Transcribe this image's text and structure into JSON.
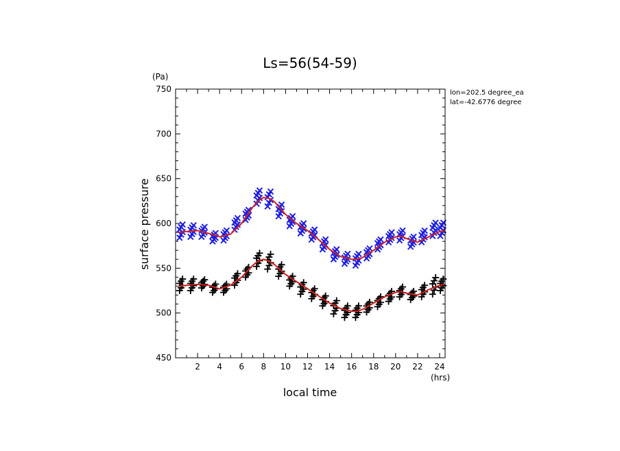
{
  "chart_data": {
    "type": "scatter",
    "title": "Ls=56(54-59)",
    "xlabel": "local time",
    "ylabel": "surface pressure",
    "x_unit": "(hrs)",
    "y_unit": "(Pa)",
    "annotations": [
      "lon=202.5 degree_ea",
      "lat=-42.6776 degree"
    ],
    "xlim": [
      0,
      24.5
    ],
    "ylim": [
      450,
      750
    ],
    "x_ticks": [
      2,
      4,
      6,
      8,
      10,
      12,
      14,
      16,
      18,
      20,
      22,
      24
    ],
    "y_ticks": [
      450,
      500,
      550,
      600,
      650,
      700,
      750
    ],
    "grid": false,
    "series": [
      {
        "marker": "x",
        "color": "#1f1fe0",
        "x": [
          0.5,
          1.5,
          2.5,
          3.5,
          4.5,
          5.5,
          6.5,
          7.5,
          8.5,
          9.5,
          10.5,
          11.5,
          12.5,
          13.5,
          14.5,
          15.5,
          16.5,
          17.5,
          18.5,
          19.5,
          20.5,
          21.5,
          22.5,
          23.5,
          24.2
        ],
        "y": [
          592,
          592,
          591,
          585,
          587,
          600,
          610,
          630,
          628,
          615,
          603,
          595,
          588,
          577,
          566,
          561,
          560,
          567,
          577,
          585,
          587,
          580,
          586,
          594,
          594
        ],
        "spread": [
          8,
          7,
          6,
          5,
          6,
          7,
          6,
          8,
          9,
          7,
          6,
          6,
          6,
          6,
          6,
          6,
          7,
          6,
          6,
          6,
          6,
          6,
          7,
          8,
          8
        ]
      },
      {
        "marker": "+",
        "color": "#000000",
        "x": [
          0.5,
          1.5,
          2.5,
          3.5,
          4.5,
          5.5,
          6.5,
          7.5,
          8.5,
          9.5,
          10.5,
          11.5,
          12.5,
          13.5,
          14.5,
          15.5,
          16.5,
          17.5,
          18.5,
          19.5,
          20.5,
          21.5,
          22.5,
          23.5,
          24.2
        ],
        "y": [
          532,
          532,
          533,
          528,
          528,
          538,
          546,
          560,
          558,
          548,
          536,
          528,
          522,
          514,
          507,
          502,
          502,
          507,
          513,
          519,
          524,
          520,
          525,
          531,
          532
        ],
        "spread": [
          7,
          7,
          5,
          5,
          5,
          7,
          6,
          8,
          9,
          7,
          6,
          7,
          6,
          6,
          8,
          7,
          7,
          6,
          6,
          6,
          6,
          5,
          7,
          10,
          7
        ]
      }
    ],
    "fits": [
      {
        "type": "line",
        "color": "#d02020",
        "x": [
          0.25,
          1,
          2,
          3,
          4,
          5,
          6,
          7,
          7.5,
          8,
          8.5,
          9,
          10,
          11,
          12,
          13,
          14,
          15,
          16,
          16.5,
          17,
          18,
          19,
          20,
          20.5,
          21,
          22,
          23,
          24,
          24.5
        ],
        "y": [
          590,
          591,
          592,
          589,
          585,
          588,
          600,
          618,
          625,
          629,
          628,
          624,
          610,
          600,
          592,
          582,
          571,
          563,
          560,
          560,
          562,
          570,
          579,
          585,
          586,
          583,
          579,
          585,
          591,
          592
        ]
      },
      {
        "type": "line",
        "color": "#d02020",
        "x": [
          0.25,
          1,
          2,
          3,
          4,
          5,
          6,
          7,
          7.5,
          8,
          8.5,
          9,
          10,
          11,
          12,
          13,
          14,
          15,
          16,
          16.5,
          17,
          18,
          19,
          20,
          20.5,
          21,
          22,
          23,
          24,
          24.5
        ],
        "y": [
          530,
          531,
          532,
          531,
          527,
          531,
          540,
          553,
          558,
          560,
          558,
          554,
          543,
          535,
          527,
          519,
          511,
          505,
          502,
          502,
          504,
          511,
          518,
          523,
          524,
          522,
          520,
          526,
          531,
          532
        ]
      }
    ]
  }
}
